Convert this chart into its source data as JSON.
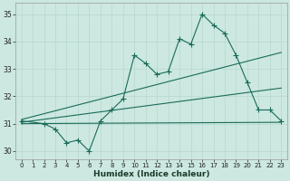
{
  "xlabel": "Humidex (Indice chaleur)",
  "xlim": [
    -0.5,
    23.5
  ],
  "ylim": [
    29.7,
    35.4
  ],
  "yticks": [
    30,
    31,
    32,
    33,
    34,
    35
  ],
  "xticks": [
    0,
    1,
    2,
    3,
    4,
    5,
    6,
    7,
    8,
    9,
    10,
    11,
    12,
    13,
    14,
    15,
    16,
    17,
    18,
    19,
    20,
    21,
    22,
    23
  ],
  "bg_color": "#cce8e0",
  "line_color": "#1a6b5a",
  "grid_color": "#b8d8d0",
  "main_x": [
    0,
    2,
    3,
    4,
    5,
    6,
    7,
    8,
    9,
    10,
    11,
    12,
    13,
    14,
    15,
    16,
    17,
    18,
    19,
    20,
    21,
    22,
    23
  ],
  "main_y": [
    31.1,
    31.0,
    30.8,
    30.3,
    30.4,
    30.0,
    31.1,
    31.5,
    31.9,
    33.5,
    33.2,
    32.8,
    32.9,
    34.1,
    33.9,
    35.0,
    34.6,
    34.3,
    33.5,
    32.5,
    31.5,
    31.5,
    31.1
  ],
  "line1_x": [
    0,
    23
  ],
  "line1_y": [
    31.15,
    33.6
  ],
  "line2_x": [
    0,
    23
  ],
  "line2_y": [
    31.05,
    32.3
  ],
  "line3_x": [
    0,
    23
  ],
  "line3_y": [
    31.0,
    31.05
  ]
}
